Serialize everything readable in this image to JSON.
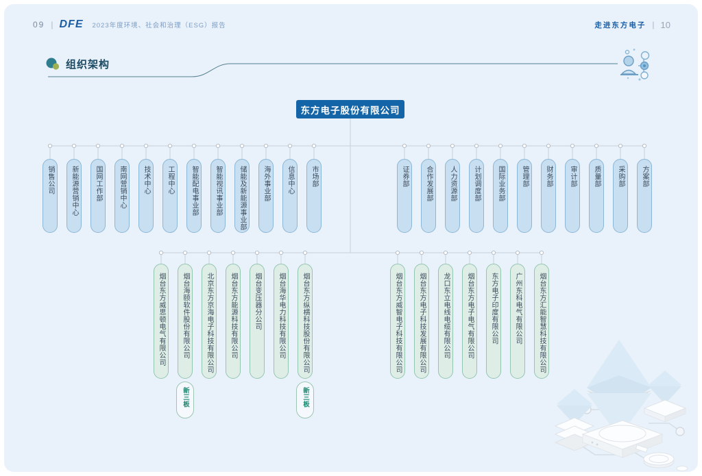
{
  "header": {
    "page_left": "09",
    "separator": "|",
    "logo": "DFE",
    "report_title": "2023年度环境、社会和治理（ESG）报告",
    "chapter": "走进东方电子",
    "page_right": "10"
  },
  "section": {
    "title": "组织架构"
  },
  "org": {
    "root": "东方电子股份有限公司",
    "departments_left": [
      "销售公司",
      "新能源营销中心",
      "国网工作部",
      "南网营销中心",
      "技术中心",
      "工程中心",
      "智能配电事业部",
      "智能视讯事业部",
      "储能及新能源事业部",
      "海外事业部",
      "信息中心",
      "市场部"
    ],
    "departments_right": [
      "证券部",
      "合作发展部",
      "人力资源部",
      "计划调度部",
      "国际业务部",
      "管理部",
      "财务部",
      "审计部",
      "质量部",
      "采购部",
      "方案部"
    ],
    "subsidiaries_left": [
      "烟台东方威思顿电气有限公司",
      "烟台海颐软件股份有限公司",
      "北京东方京海电子科技有限公司",
      "烟台东方能源科技有限公司",
      "烟台变压器分公司",
      "烟台海华电力科技有限公司",
      "烟台东方纵横科技股份有限公司"
    ],
    "subsidiaries_right": [
      "烟台东方威智电子科技有限公司",
      "烟台东方电子科技发展有限公司",
      "龙口东立电线电缆有限公司",
      "烟台东方电子电气有限公司",
      "东方电子印度有限公司",
      "广州东科电气有限公司",
      "烟台东方汇能智慧科技有限公司"
    ],
    "badge_label": "新三板"
  },
  "icons": {
    "section_bullet": "dual-circle-bullet-icon",
    "line_end": "person-org-hierarchy-icon",
    "decoration": "isometric-network-illustration"
  },
  "colors": {
    "page_bg": "#e9f1fa",
    "root_box": "#1365a7",
    "dept_fill": "#c7dff0",
    "dept_border": "#8cb6d6",
    "sub_fill": "#deeee7",
    "sub_border": "#93c5af",
    "line": "#c7cfd9",
    "accent_blue": "#1b5ea6",
    "badge_border": "#9cc6b2",
    "badge_text": "#1e8a73",
    "divider": "#557f91"
  }
}
